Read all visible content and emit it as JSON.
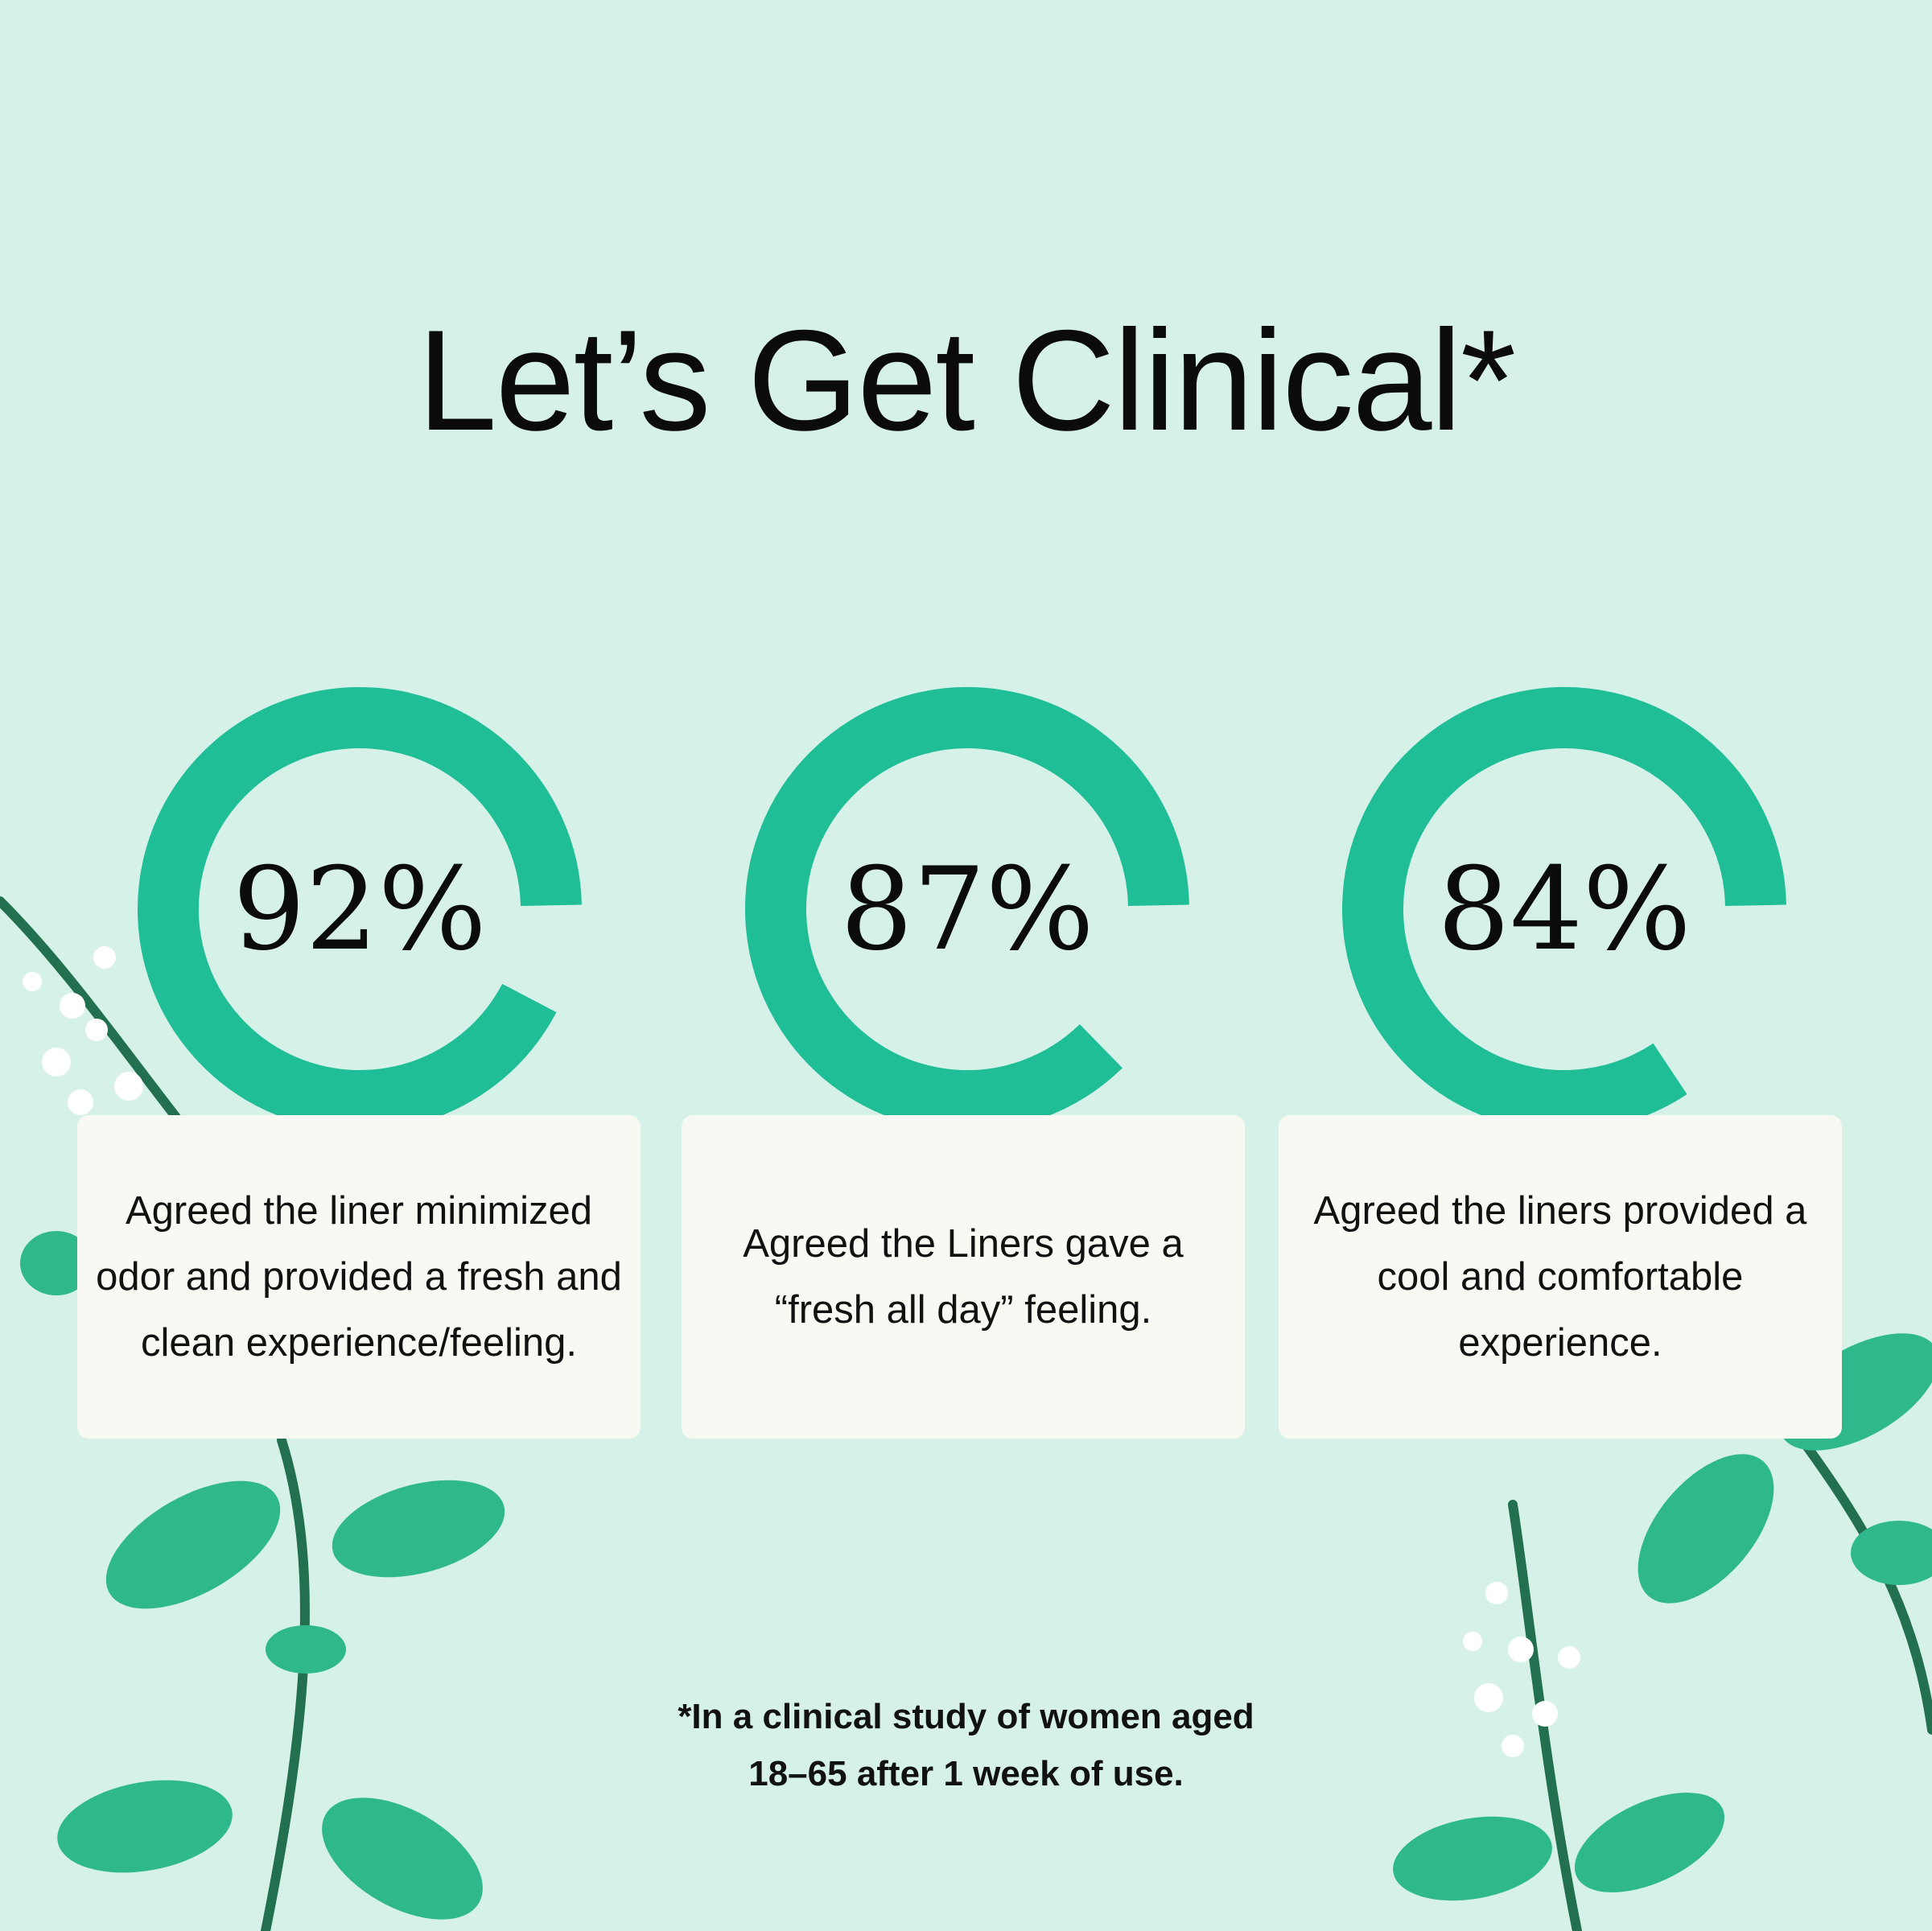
{
  "title": "Let’s Get Clinical*",
  "colors": {
    "background": "#d6f2e8",
    "ring": "#1fbe96",
    "card": "#f9f9f4",
    "leaf": "#2fb88c",
    "stem": "#22704f"
  },
  "stats": [
    {
      "value": "92%",
      "percent": 92,
      "text": "Agreed the liner minimized odor and provided a fresh and clean experience/feeling."
    },
    {
      "value": "87%",
      "percent": 87,
      "text": "Agreed the Liners gave a “fresh all day” feeling."
    },
    {
      "value": "84%",
      "percent": 84,
      "text": "Agreed the liners provided a cool and comfortable experience."
    }
  ],
  "footnote": {
    "line1": "*In a clinical study of women aged",
    "line2": "18–65 after 1 week of use."
  }
}
